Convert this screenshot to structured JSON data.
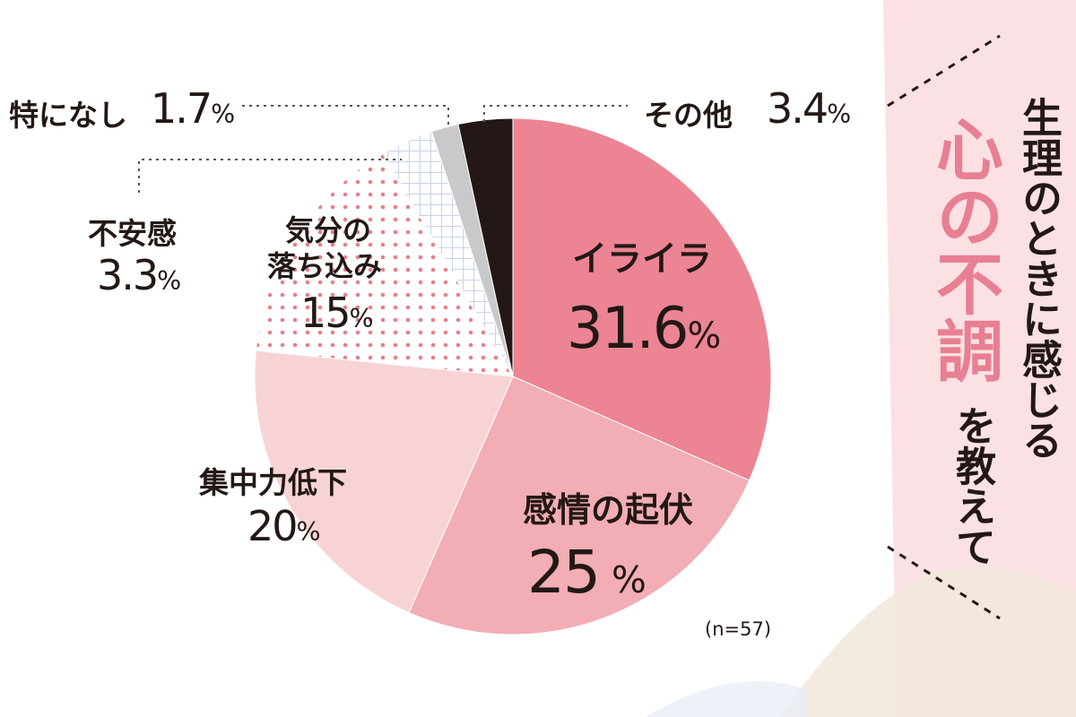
{
  "chart_data": {
    "type": "pie",
    "n_label": "(n=57)",
    "slices": [
      {
        "label": "イライラ",
        "value": 31.6,
        "value_text": "31.6",
        "unit": "%",
        "color": "#ec8493"
      },
      {
        "label": "感情の起伏",
        "value": 25,
        "value_text": "25",
        "unit": "%",
        "color": "#f2adb5"
      },
      {
        "label": "集中力低下",
        "value": 20,
        "value_text": "20",
        "unit": "%",
        "color": "#f8d3d6"
      },
      {
        "label": "気分の落ち込み",
        "label_lines": [
          "気分の",
          "落ち込み"
        ],
        "value": 15,
        "value_text": "15",
        "unit": "%",
        "color": "#ffffff",
        "pattern": "dots"
      },
      {
        "label": "不安感",
        "value": 3.3,
        "value_text": "3.3",
        "unit": "%",
        "color": "#ffffff",
        "pattern": "grid"
      },
      {
        "label": "特になし",
        "value": 1.7,
        "value_text": "1.7",
        "unit": "%",
        "color": "#c9c9cb"
      },
      {
        "label": "その他",
        "value": 3.4,
        "value_text": "3.4",
        "unit": "%",
        "color": "#231815"
      }
    ]
  },
  "title": {
    "line1": "生理のときに感じる",
    "highlight": "心の不調",
    "line3": "を教えて"
  },
  "colors": {
    "accent": "#e87f93",
    "ink": "#231815",
    "panel": "#fbe1e4"
  }
}
